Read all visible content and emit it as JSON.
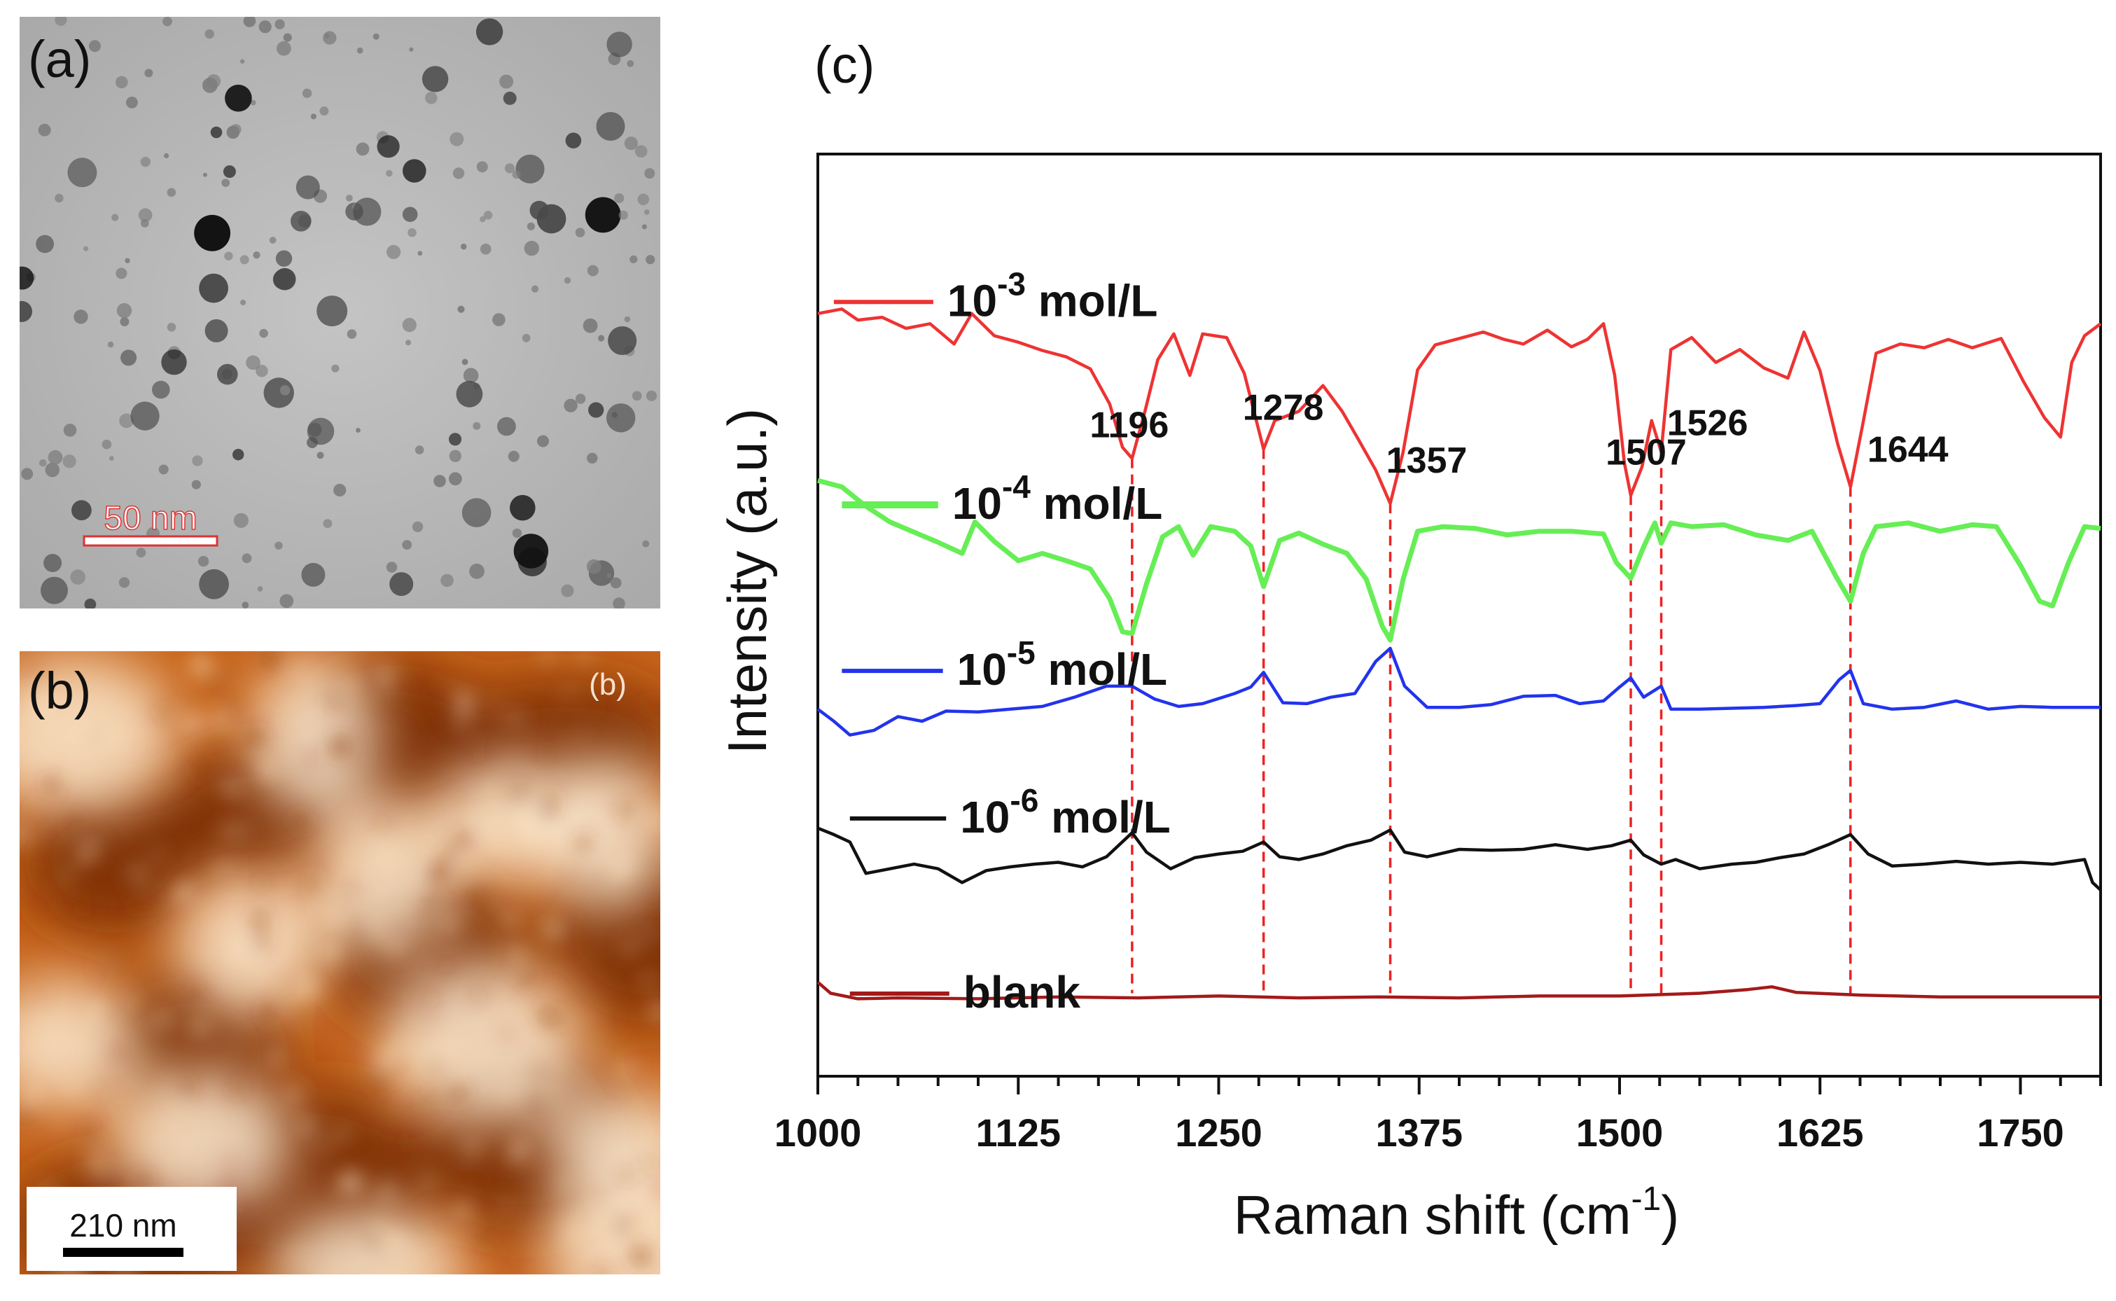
{
  "panels": {
    "a": {
      "label": "(a)",
      "scale_bar": "50 nm"
    },
    "b": {
      "label": "(b)",
      "inner_label": "(b)",
      "scale_bar": "210 nm"
    },
    "c": {
      "label": "(c)"
    }
  },
  "colors": {
    "red": "#ee3333",
    "green": "#66ee55",
    "blue": "#2233ee",
    "black": "#111111",
    "darkred": "#a31a1a",
    "peak_line": "#ee2222",
    "tem_bg": "#b9b9b9",
    "afm_dark": "#6b1f00",
    "afm_mid": "#c8651a",
    "afm_light": "#fff3dc"
  },
  "chart_data": {
    "type": "line",
    "title": "",
    "xlabel": "Raman shift (cm-1)",
    "xlabel_parts": {
      "main": "Raman shift (cm",
      "sup": "-1",
      "close": ")"
    },
    "ylabel": "Intensity (a.u.)",
    "xlim": [
      1000,
      1800
    ],
    "ylim": [
      0,
      100
    ],
    "x_ticks": [
      1000,
      1125,
      1250,
      1375,
      1500,
      1625,
      1750
    ],
    "x_tick_labels": [
      "1000",
      "1125",
      "1250",
      "1375",
      "1500",
      "1625",
      "1750"
    ],
    "grid": false,
    "peaks": [
      {
        "x": 1196,
        "label": "1196"
      },
      {
        "x": 1278,
        "label": "1278"
      },
      {
        "x": 1357,
        "label": "1357"
      },
      {
        "x": 1507,
        "label": "1507"
      },
      {
        "x": 1526,
        "label": "1526"
      },
      {
        "x": 1644,
        "label": "1644"
      }
    ],
    "series": [
      {
        "name": "10-3 mol/L",
        "base": "10",
        "exp": "-3",
        "unit": " mol/L",
        "color": "#ee3333",
        "points": [
          [
            1000,
            17.3
          ],
          [
            1015,
            16.8
          ],
          [
            1025,
            18.0
          ],
          [
            1040,
            17.7
          ],
          [
            1055,
            18.9
          ],
          [
            1070,
            18.4
          ],
          [
            1085,
            20.6
          ],
          [
            1096,
            17.3
          ],
          [
            1110,
            19.7
          ],
          [
            1125,
            20.4
          ],
          [
            1140,
            21.3
          ],
          [
            1155,
            22.0
          ],
          [
            1170,
            23.3
          ],
          [
            1182,
            27.1
          ],
          [
            1190,
            31.8
          ],
          [
            1196,
            33.0
          ],
          [
            1204,
            27.9
          ],
          [
            1212,
            22.3
          ],
          [
            1222,
            19.5
          ],
          [
            1232,
            24.0
          ],
          [
            1240,
            19.5
          ],
          [
            1255,
            19.9
          ],
          [
            1266,
            23.8
          ],
          [
            1278,
            32.0
          ],
          [
            1285,
            28.9
          ],
          [
            1300,
            27.9
          ],
          [
            1315,
            25.1
          ],
          [
            1327,
            27.9
          ],
          [
            1337,
            30.9
          ],
          [
            1348,
            34.3
          ],
          [
            1357,
            37.9
          ],
          [
            1365,
            32.3
          ],
          [
            1374,
            23.4
          ],
          [
            1385,
            20.7
          ],
          [
            1400,
            20.0
          ],
          [
            1415,
            19.3
          ],
          [
            1428,
            20.1
          ],
          [
            1440,
            20.6
          ],
          [
            1455,
            19.1
          ],
          [
            1470,
            20.9
          ],
          [
            1480,
            20.1
          ],
          [
            1490,
            18.4
          ],
          [
            1497,
            24.0
          ],
          [
            1503,
            33.5
          ],
          [
            1507,
            37.0
          ],
          [
            1514,
            33.9
          ],
          [
            1520,
            28.9
          ],
          [
            1526,
            32.3
          ],
          [
            1532,
            21.2
          ],
          [
            1545,
            19.9
          ],
          [
            1560,
            22.6
          ],
          [
            1575,
            21.2
          ],
          [
            1590,
            23.2
          ],
          [
            1605,
            24.3
          ],
          [
            1615,
            19.3
          ],
          [
            1625,
            23.5
          ],
          [
            1636,
            31.4
          ],
          [
            1644,
            36.1
          ],
          [
            1652,
            29.0
          ],
          [
            1660,
            21.6
          ],
          [
            1675,
            20.6
          ],
          [
            1690,
            21.0
          ],
          [
            1705,
            20.1
          ],
          [
            1720,
            21.0
          ],
          [
            1738,
            20.0
          ],
          [
            1752,
            24.7
          ],
          [
            1765,
            28.6
          ],
          [
            1775,
            30.7
          ],
          [
            1782,
            22.6
          ],
          [
            1790,
            19.7
          ],
          [
            1800,
            18.4
          ]
        ]
      },
      {
        "name": "10-4 mol/L",
        "base": "10",
        "exp": "-4",
        "unit": " mol/L",
        "color": "#66ee55",
        "points": [
          [
            1000,
            35.4
          ],
          [
            1015,
            36.1
          ],
          [
            1030,
            38.2
          ],
          [
            1045,
            39.9
          ],
          [
            1060,
            41.0
          ],
          [
            1075,
            42.1
          ],
          [
            1090,
            43.3
          ],
          [
            1098,
            39.9
          ],
          [
            1110,
            42.0
          ],
          [
            1125,
            44.1
          ],
          [
            1140,
            43.3
          ],
          [
            1155,
            44.1
          ],
          [
            1170,
            45.0
          ],
          [
            1182,
            48.2
          ],
          [
            1190,
            51.8
          ],
          [
            1196,
            52.0
          ],
          [
            1205,
            46.6
          ],
          [
            1215,
            41.5
          ],
          [
            1225,
            40.4
          ],
          [
            1234,
            43.5
          ],
          [
            1245,
            40.4
          ],
          [
            1260,
            40.9
          ],
          [
            1270,
            42.5
          ],
          [
            1278,
            46.9
          ],
          [
            1288,
            41.9
          ],
          [
            1300,
            41.1
          ],
          [
            1315,
            42.3
          ],
          [
            1330,
            43.3
          ],
          [
            1342,
            46.1
          ],
          [
            1352,
            51.2
          ],
          [
            1357,
            52.7
          ],
          [
            1365,
            46.1
          ],
          [
            1374,
            40.9
          ],
          [
            1390,
            40.4
          ],
          [
            1410,
            40.6
          ],
          [
            1430,
            41.3
          ],
          [
            1450,
            40.9
          ],
          [
            1470,
            40.9
          ],
          [
            1490,
            41.2
          ],
          [
            1498,
            44.3
          ],
          [
            1507,
            46.0
          ],
          [
            1515,
            42.6
          ],
          [
            1522,
            40.0
          ],
          [
            1526,
            42.2
          ],
          [
            1532,
            40.0
          ],
          [
            1545,
            40.4
          ],
          [
            1565,
            40.2
          ],
          [
            1585,
            41.3
          ],
          [
            1605,
            41.9
          ],
          [
            1620,
            40.9
          ],
          [
            1635,
            45.8
          ],
          [
            1644,
            48.5
          ],
          [
            1652,
            43.3
          ],
          [
            1660,
            40.4
          ],
          [
            1680,
            40.0
          ],
          [
            1700,
            40.9
          ],
          [
            1720,
            40.2
          ],
          [
            1735,
            40.4
          ],
          [
            1750,
            44.6
          ],
          [
            1762,
            48.5
          ],
          [
            1770,
            49.0
          ],
          [
            1780,
            44.3
          ],
          [
            1790,
            40.4
          ],
          [
            1800,
            40.6
          ]
        ]
      },
      {
        "name": "10-5 mol/L",
        "base": "10",
        "exp": "-5",
        "unit": " mol/L",
        "color": "#2233ee",
        "points": [
          [
            1000,
            60.2
          ],
          [
            1010,
            61.5
          ],
          [
            1020,
            63.0
          ],
          [
            1035,
            62.5
          ],
          [
            1050,
            61.0
          ],
          [
            1065,
            61.5
          ],
          [
            1080,
            60.4
          ],
          [
            1100,
            60.5
          ],
          [
            1120,
            60.2
          ],
          [
            1140,
            59.9
          ],
          [
            1160,
            58.9
          ],
          [
            1180,
            57.7
          ],
          [
            1196,
            57.7
          ],
          [
            1210,
            59.1
          ],
          [
            1225,
            59.9
          ],
          [
            1240,
            59.6
          ],
          [
            1260,
            58.5
          ],
          [
            1270,
            57.8
          ],
          [
            1278,
            56.2
          ],
          [
            1290,
            59.5
          ],
          [
            1305,
            59.6
          ],
          [
            1320,
            58.9
          ],
          [
            1335,
            58.5
          ],
          [
            1348,
            55.0
          ],
          [
            1357,
            53.6
          ],
          [
            1366,
            57.7
          ],
          [
            1380,
            60.0
          ],
          [
            1400,
            60.0
          ],
          [
            1420,
            59.7
          ],
          [
            1440,
            58.8
          ],
          [
            1460,
            58.7
          ],
          [
            1475,
            59.6
          ],
          [
            1490,
            59.3
          ],
          [
            1500,
            57.8
          ],
          [
            1507,
            56.8
          ],
          [
            1515,
            58.9
          ],
          [
            1526,
            57.7
          ],
          [
            1532,
            60.2
          ],
          [
            1550,
            60.2
          ],
          [
            1570,
            60.1
          ],
          [
            1590,
            60.0
          ],
          [
            1610,
            59.8
          ],
          [
            1625,
            59.6
          ],
          [
            1637,
            57.0
          ],
          [
            1644,
            56.0
          ],
          [
            1652,
            59.6
          ],
          [
            1670,
            60.2
          ],
          [
            1690,
            60.0
          ],
          [
            1710,
            59.3
          ],
          [
            1730,
            60.2
          ],
          [
            1750,
            59.9
          ],
          [
            1770,
            60.0
          ],
          [
            1800,
            60.0
          ]
        ]
      },
      {
        "name": "10-6 mol/L",
        "base": "10",
        "exp": "-6",
        "unit": " mol/L",
        "color": "#111111",
        "points": [
          [
            1000,
            73.1
          ],
          [
            1010,
            73.8
          ],
          [
            1020,
            74.6
          ],
          [
            1030,
            78.0
          ],
          [
            1045,
            77.5
          ],
          [
            1060,
            77.0
          ],
          [
            1075,
            77.5
          ],
          [
            1090,
            79.0
          ],
          [
            1105,
            77.7
          ],
          [
            1120,
            77.3
          ],
          [
            1135,
            77.0
          ],
          [
            1150,
            76.8
          ],
          [
            1165,
            77.3
          ],
          [
            1180,
            76.2
          ],
          [
            1196,
            73.6
          ],
          [
            1205,
            75.7
          ],
          [
            1220,
            77.5
          ],
          [
            1235,
            76.3
          ],
          [
            1250,
            75.9
          ],
          [
            1265,
            75.6
          ],
          [
            1278,
            74.6
          ],
          [
            1288,
            76.2
          ],
          [
            1300,
            76.5
          ],
          [
            1315,
            75.9
          ],
          [
            1330,
            75.0
          ],
          [
            1345,
            74.4
          ],
          [
            1357,
            73.3
          ],
          [
            1366,
            75.7
          ],
          [
            1380,
            76.2
          ],
          [
            1400,
            75.4
          ],
          [
            1420,
            75.5
          ],
          [
            1440,
            75.4
          ],
          [
            1460,
            74.9
          ],
          [
            1480,
            75.4
          ],
          [
            1495,
            75.0
          ],
          [
            1507,
            74.4
          ],
          [
            1515,
            76.0
          ],
          [
            1526,
            77.0
          ],
          [
            1535,
            76.5
          ],
          [
            1550,
            77.5
          ],
          [
            1570,
            77.0
          ],
          [
            1585,
            76.8
          ],
          [
            1600,
            76.3
          ],
          [
            1615,
            75.9
          ],
          [
            1630,
            74.9
          ],
          [
            1644,
            73.8
          ],
          [
            1655,
            75.9
          ],
          [
            1670,
            77.2
          ],
          [
            1690,
            77.0
          ],
          [
            1710,
            76.7
          ],
          [
            1730,
            77.0
          ],
          [
            1750,
            76.8
          ],
          [
            1770,
            77.0
          ],
          [
            1790,
            76.5
          ],
          [
            1795,
            79.0
          ],
          [
            1800,
            79.8
          ]
        ]
      },
      {
        "name": "blank",
        "base": "blank",
        "exp": "",
        "unit": "",
        "color": "#a31a1a",
        "points": [
          [
            1000,
            89.8
          ],
          [
            1008,
            91.0
          ],
          [
            1025,
            91.6
          ],
          [
            1050,
            91.5
          ],
          [
            1100,
            91.6
          ],
          [
            1150,
            91.4
          ],
          [
            1200,
            91.5
          ],
          [
            1250,
            91.3
          ],
          [
            1300,
            91.5
          ],
          [
            1350,
            91.4
          ],
          [
            1400,
            91.5
          ],
          [
            1450,
            91.3
          ],
          [
            1500,
            91.3
          ],
          [
            1550,
            91.0
          ],
          [
            1580,
            90.6
          ],
          [
            1595,
            90.3
          ],
          [
            1610,
            90.9
          ],
          [
            1650,
            91.2
          ],
          [
            1700,
            91.4
          ],
          [
            1750,
            91.4
          ],
          [
            1800,
            91.4
          ]
        ]
      }
    ]
  }
}
